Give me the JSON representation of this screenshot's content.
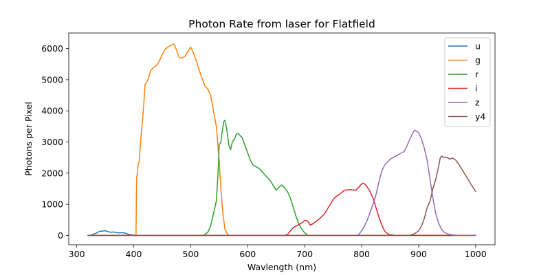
{
  "chart_data": {
    "type": "line",
    "title": "Photon Rate from laser for Flatfield",
    "xlabel": "Wavlength (nm)",
    "ylabel": "Photons per Pixel",
    "xlim": [
      286,
      1034
    ],
    "ylim": [
      -300,
      6500
    ],
    "xticks": [
      300,
      400,
      500,
      600,
      700,
      800,
      900,
      1000
    ],
    "yticks": [
      0,
      1000,
      2000,
      3000,
      4000,
      5000,
      6000
    ],
    "grid": false,
    "legend_position": "top-right",
    "series": [
      {
        "name": "u",
        "color": "#1f77b4",
        "points": [
          [
            320,
            0
          ],
          [
            325,
            10
          ],
          [
            330,
            40
          ],
          [
            335,
            80
          ],
          [
            340,
            130
          ],
          [
            345,
            140
          ],
          [
            350,
            150
          ],
          [
            355,
            120
          ],
          [
            360,
            100
          ],
          [
            365,
            110
          ],
          [
            370,
            90
          ],
          [
            375,
            80
          ],
          [
            380,
            90
          ],
          [
            385,
            70
          ],
          [
            390,
            40
          ],
          [
            395,
            20
          ],
          [
            400,
            10
          ],
          [
            405,
            5
          ],
          [
            410,
            0
          ],
          [
            420,
            0
          ],
          [
            500,
            0
          ],
          [
            600,
            0
          ],
          [
            700,
            0
          ],
          [
            800,
            0
          ],
          [
            900,
            0
          ],
          [
            1000,
            0
          ]
        ]
      },
      {
        "name": "g",
        "color": "#ff7f0e",
        "points": [
          [
            320,
            0
          ],
          [
            400,
            0
          ],
          [
            404,
            0
          ],
          [
            405,
            1800
          ],
          [
            408,
            2300
          ],
          [
            410,
            2400
          ],
          [
            412,
            3000
          ],
          [
            415,
            3600
          ],
          [
            418,
            4300
          ],
          [
            420,
            4850
          ],
          [
            425,
            5000
          ],
          [
            430,
            5300
          ],
          [
            435,
            5400
          ],
          [
            440,
            5450
          ],
          [
            445,
            5600
          ],
          [
            450,
            5800
          ],
          [
            455,
            5980
          ],
          [
            460,
            6050
          ],
          [
            465,
            6100
          ],
          [
            470,
            6150
          ],
          [
            472,
            6100
          ],
          [
            475,
            5950
          ],
          [
            480,
            5700
          ],
          [
            485,
            5700
          ],
          [
            490,
            5750
          ],
          [
            495,
            5900
          ],
          [
            500,
            6050
          ],
          [
            505,
            5850
          ],
          [
            510,
            5600
          ],
          [
            515,
            5300
          ],
          [
            520,
            5050
          ],
          [
            525,
            4800
          ],
          [
            530,
            4700
          ],
          [
            535,
            4500
          ],
          [
            540,
            4000
          ],
          [
            545,
            3500
          ],
          [
            550,
            2400
          ],
          [
            553,
            1500
          ],
          [
            556,
            800
          ],
          [
            560,
            200
          ],
          [
            565,
            20
          ],
          [
            570,
            0
          ],
          [
            600,
            0
          ],
          [
            700,
            0
          ],
          [
            800,
            0
          ],
          [
            900,
            0
          ],
          [
            1000,
            0
          ]
        ]
      },
      {
        "name": "r",
        "color": "#2ca02c",
        "points": [
          [
            320,
            0
          ],
          [
            500,
            0
          ],
          [
            520,
            0
          ],
          [
            525,
            30
          ],
          [
            530,
            100
          ],
          [
            535,
            300
          ],
          [
            540,
            700
          ],
          [
            545,
            1100
          ],
          [
            548,
            2000
          ],
          [
            550,
            2900
          ],
          [
            553,
            3000
          ],
          [
            555,
            3300
          ],
          [
            558,
            3650
          ],
          [
            560,
            3700
          ],
          [
            563,
            3450
          ],
          [
            567,
            2900
          ],
          [
            570,
            2750
          ],
          [
            573,
            3000
          ],
          [
            577,
            3100
          ],
          [
            580,
            3250
          ],
          [
            583,
            3280
          ],
          [
            587,
            3200
          ],
          [
            590,
            3150
          ],
          [
            595,
            2900
          ],
          [
            600,
            2650
          ],
          [
            605,
            2400
          ],
          [
            610,
            2250
          ],
          [
            615,
            2200
          ],
          [
            620,
            2150
          ],
          [
            625,
            2050
          ],
          [
            630,
            1950
          ],
          [
            635,
            1850
          ],
          [
            640,
            1750
          ],
          [
            645,
            1600
          ],
          [
            650,
            1450
          ],
          [
            655,
            1550
          ],
          [
            660,
            1620
          ],
          [
            665,
            1520
          ],
          [
            670,
            1400
          ],
          [
            675,
            1200
          ],
          [
            680,
            900
          ],
          [
            685,
            600
          ],
          [
            690,
            350
          ],
          [
            695,
            200
          ],
          [
            700,
            80
          ],
          [
            705,
            10
          ],
          [
            710,
            0
          ],
          [
            800,
            0
          ],
          [
            900,
            0
          ],
          [
            1000,
            0
          ]
        ]
      },
      {
        "name": "i",
        "color": "#d62728",
        "points": [
          [
            320,
            0
          ],
          [
            600,
            0
          ],
          [
            660,
            0
          ],
          [
            665,
            5
          ],
          [
            670,
            30
          ],
          [
            675,
            150
          ],
          [
            680,
            250
          ],
          [
            685,
            300
          ],
          [
            690,
            350
          ],
          [
            695,
            400
          ],
          [
            700,
            480
          ],
          [
            703,
            480
          ],
          [
            707,
            420
          ],
          [
            710,
            330
          ],
          [
            715,
            380
          ],
          [
            720,
            450
          ],
          [
            725,
            520
          ],
          [
            730,
            600
          ],
          [
            735,
            700
          ],
          [
            740,
            850
          ],
          [
            745,
            1000
          ],
          [
            750,
            1150
          ],
          [
            755,
            1250
          ],
          [
            760,
            1300
          ],
          [
            765,
            1380
          ],
          [
            770,
            1450
          ],
          [
            775,
            1460
          ],
          [
            780,
            1470
          ],
          [
            785,
            1460
          ],
          [
            790,
            1450
          ],
          [
            795,
            1550
          ],
          [
            800,
            1650
          ],
          [
            803,
            1680
          ],
          [
            806,
            1640
          ],
          [
            810,
            1550
          ],
          [
            815,
            1400
          ],
          [
            820,
            1200
          ],
          [
            825,
            900
          ],
          [
            830,
            600
          ],
          [
            835,
            350
          ],
          [
            840,
            150
          ],
          [
            845,
            60
          ],
          [
            850,
            20
          ],
          [
            860,
            0
          ],
          [
            900,
            0
          ],
          [
            1000,
            0
          ]
        ]
      },
      {
        "name": "z",
        "color": "#9467bd",
        "points": [
          [
            320,
            0
          ],
          [
            700,
            0
          ],
          [
            790,
            0
          ],
          [
            795,
            30
          ],
          [
            800,
            150
          ],
          [
            805,
            300
          ],
          [
            810,
            500
          ],
          [
            815,
            750
          ],
          [
            820,
            1000
          ],
          [
            825,
            1300
          ],
          [
            830,
            1700
          ],
          [
            835,
            2050
          ],
          [
            840,
            2250
          ],
          [
            845,
            2350
          ],
          [
            850,
            2450
          ],
          [
            855,
            2500
          ],
          [
            860,
            2550
          ],
          [
            865,
            2600
          ],
          [
            870,
            2650
          ],
          [
            875,
            2700
          ],
          [
            880,
            2900
          ],
          [
            885,
            3100
          ],
          [
            890,
            3300
          ],
          [
            893,
            3380
          ],
          [
            896,
            3350
          ],
          [
            900,
            3300
          ],
          [
            905,
            3100
          ],
          [
            910,
            2800
          ],
          [
            915,
            2400
          ],
          [
            920,
            1800
          ],
          [
            925,
            1200
          ],
          [
            930,
            700
          ],
          [
            935,
            400
          ],
          [
            940,
            200
          ],
          [
            945,
            100
          ],
          [
            950,
            50
          ],
          [
            955,
            30
          ],
          [
            960,
            15
          ],
          [
            970,
            5
          ],
          [
            980,
            0
          ],
          [
            1000,
            0
          ]
        ]
      },
      {
        "name": "y4",
        "color": "#8c564b",
        "points": [
          [
            320,
            0
          ],
          [
            800,
            0
          ],
          [
            880,
            0
          ],
          [
            885,
            10
          ],
          [
            890,
            30
          ],
          [
            895,
            80
          ],
          [
            900,
            150
          ],
          [
            905,
            300
          ],
          [
            910,
            550
          ],
          [
            915,
            900
          ],
          [
            920,
            1100
          ],
          [
            925,
            1500
          ],
          [
            930,
            1800
          ],
          [
            935,
            2200
          ],
          [
            938,
            2500
          ],
          [
            941,
            2550
          ],
          [
            944,
            2500
          ],
          [
            947,
            2520
          ],
          [
            950,
            2500
          ],
          [
            955,
            2450
          ],
          [
            960,
            2480
          ],
          [
            965,
            2420
          ],
          [
            970,
            2300
          ],
          [
            975,
            2150
          ],
          [
            980,
            2000
          ],
          [
            985,
            1850
          ],
          [
            990,
            1700
          ],
          [
            995,
            1550
          ],
          [
            1000,
            1420
          ]
        ]
      }
    ]
  }
}
